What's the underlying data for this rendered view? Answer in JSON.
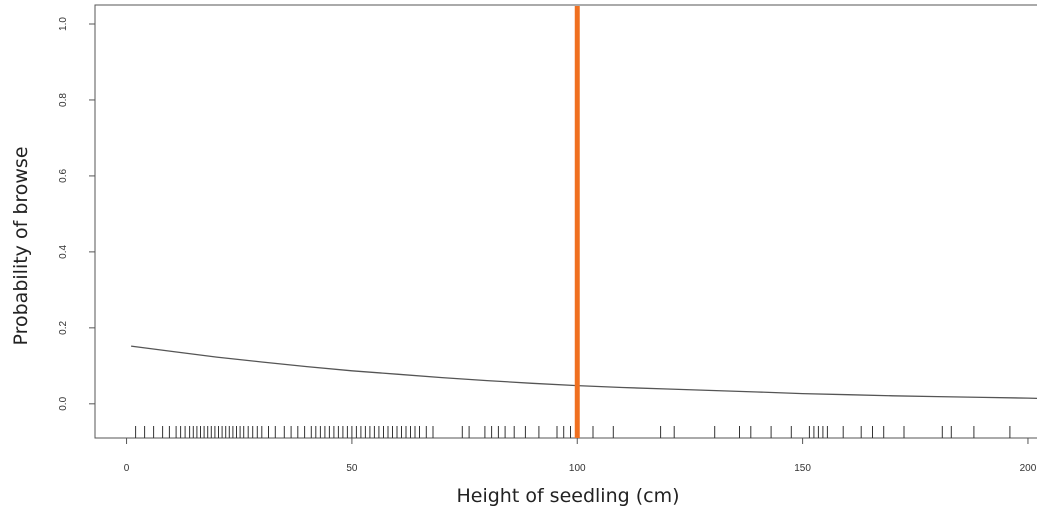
{
  "chart_data": {
    "type": "line",
    "title": "",
    "xlabel": "Height of seedling  (cm)",
    "ylabel": "Probability of browse",
    "xlim": [
      -7,
      206
    ],
    "ylim": [
      -0.09,
      1.05
    ],
    "x_ticks": [
      {
        "value": 0,
        "label": "0"
      },
      {
        "value": 50,
        "label": "50"
      },
      {
        "value": 100,
        "label": "100"
      },
      {
        "value": 150,
        "label": "150"
      },
      {
        "value": 200,
        "label": "200"
      }
    ],
    "y_ticks": [
      {
        "value": 0.0,
        "label": "0.0"
      },
      {
        "value": 0.2,
        "label": "0.2"
      },
      {
        "value": 0.4,
        "label": "0.4"
      },
      {
        "value": 0.6,
        "label": "0.6"
      },
      {
        "value": 0.8,
        "label": "0.8"
      },
      {
        "value": 1.0,
        "label": "1.0"
      }
    ],
    "grid": false,
    "legend": "none",
    "series": [
      {
        "x": [
          1,
          10,
          20,
          30,
          40,
          50,
          60,
          70,
          80,
          90,
          100,
          110,
          120,
          130,
          140,
          150,
          160,
          170,
          180,
          190,
          200,
          206
        ],
        "values": [
          0.152,
          0.138,
          0.123,
          0.11,
          0.098,
          0.087,
          0.078,
          0.069,
          0.061,
          0.054,
          0.048,
          0.043,
          0.039,
          0.035,
          0.031,
          0.027,
          0.024,
          0.021,
          0.019,
          0.017,
          0.015,
          0.013
        ],
        "color": "#555555"
      }
    ],
    "reference_line": {
      "x": 100,
      "color": "#f07020"
    },
    "rug": {
      "color": "#333333",
      "values": [
        2,
        4,
        6,
        8,
        9.5,
        11,
        12,
        13,
        14,
        14.8,
        15.6,
        16.4,
        17.2,
        18,
        18.8,
        19.6,
        20.4,
        21.2,
        22,
        22.8,
        23.6,
        24.4,
        25.2,
        26,
        27,
        28,
        29,
        30,
        31.5,
        33,
        35,
        36.5,
        38,
        39.5,
        41,
        42,
        43,
        44,
        45,
        46,
        47,
        48,
        49,
        50,
        51,
        52,
        53,
        54,
        55,
        56,
        57,
        58,
        59,
        60,
        61,
        62,
        63,
        64,
        65,
        66.5,
        68,
        74.5,
        76,
        79.5,
        81,
        82.5,
        84,
        86,
        88.5,
        91.5,
        95.5,
        97,
        98.5,
        103.5,
        108,
        118.5,
        121.5,
        130.5,
        136,
        138.5,
        143,
        147.5,
        151.5,
        152.5,
        153.5,
        154.5,
        155.5,
        159,
        163,
        165.5,
        168,
        172.5,
        181,
        183,
        188,
        196,
        205
      ]
    }
  }
}
